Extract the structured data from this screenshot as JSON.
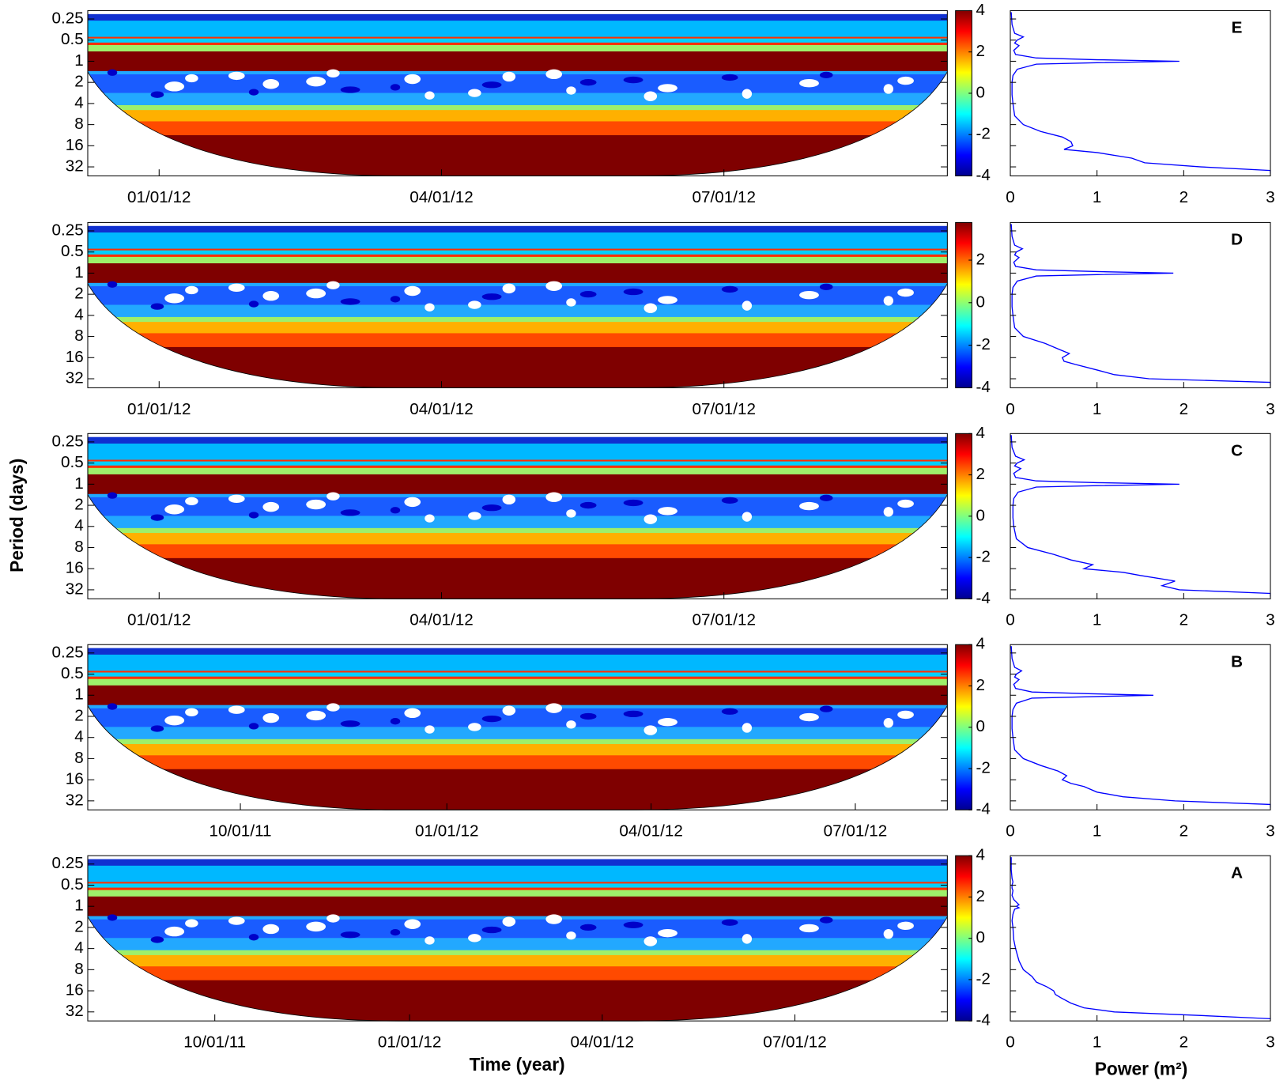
{
  "y_label": "Period (days)",
  "x_label": "Time (year)",
  "power_label": "Power (m²)",
  "chart_data": [
    {
      "type": "wavelet",
      "label": "E",
      "xlim": [
        "2011-12-09",
        "2012-09-11"
      ],
      "xticks": [
        {
          "value": "2012-01-01",
          "label": "01/01/12"
        },
        {
          "value": "2012-04-01",
          "label": "04/01/12"
        },
        {
          "value": "2012-07-01",
          "label": "07/01/12"
        }
      ],
      "ylim": [
        43,
        0.19
      ],
      "yticks": [
        0.25,
        0.5,
        1,
        2,
        4,
        8,
        16,
        32
      ],
      "log_y": true,
      "colorbar": {
        "lim": [
          -4,
          4
        ],
        "ticks": [
          -4,
          -2,
          0,
          2,
          4
        ]
      },
      "spectrum": {
        "color": "#0000ff",
        "xlim": [
          0,
          3
        ],
        "xticks": [
          0,
          1,
          2,
          3
        ],
        "period": [
          0.2,
          0.3,
          0.4,
          0.45,
          0.5,
          0.55,
          0.6,
          0.7,
          0.8,
          0.9,
          0.95,
          1,
          1.05,
          1.1,
          1.3,
          1.6,
          2,
          3,
          4,
          6,
          8,
          10,
          12,
          14,
          16,
          18,
          20,
          24,
          28,
          32,
          36,
          40
        ],
        "power": [
          0.01,
          0.02,
          0.05,
          0.15,
          0.08,
          0.05,
          0.1,
          0.04,
          0.06,
          0.3,
          1.0,
          1.95,
          1.0,
          0.3,
          0.08,
          0.03,
          0.02,
          0.02,
          0.03,
          0.05,
          0.15,
          0.35,
          0.6,
          0.7,
          0.72,
          0.62,
          1.0,
          1.4,
          1.55,
          2.2,
          3.0,
          3.0
        ]
      }
    },
    {
      "type": "wavelet",
      "label": "D",
      "xlim": [
        "2011-12-09",
        "2012-09-11"
      ],
      "xticks": [
        {
          "value": "2012-01-01",
          "label": "01/01/12"
        },
        {
          "value": "2012-04-01",
          "label": "04/01/12"
        },
        {
          "value": "2012-07-01",
          "label": "07/01/12"
        }
      ],
      "ylim": [
        43,
        0.19
      ],
      "yticks": [
        0.25,
        0.5,
        1,
        2,
        4,
        8,
        16,
        32
      ],
      "log_y": true,
      "colorbar": {
        "lim": [
          -4,
          3.77
        ],
        "ticks": [
          -4,
          -2,
          0,
          2
        ]
      },
      "spectrum": {
        "color": "#0000ff",
        "xlim": [
          0,
          3
        ],
        "xticks": [
          0,
          1,
          2,
          3
        ],
        "period": [
          0.2,
          0.3,
          0.4,
          0.45,
          0.5,
          0.55,
          0.6,
          0.7,
          0.8,
          0.9,
          0.95,
          1,
          1.05,
          1.1,
          1.3,
          1.6,
          2,
          3,
          4,
          6,
          8,
          10,
          12,
          14,
          16,
          18,
          20,
          24,
          28,
          32,
          36,
          40
        ],
        "power": [
          0.01,
          0.02,
          0.05,
          0.14,
          0.07,
          0.05,
          0.1,
          0.04,
          0.06,
          0.3,
          1.0,
          1.88,
          1.0,
          0.3,
          0.08,
          0.03,
          0.02,
          0.02,
          0.03,
          0.05,
          0.15,
          0.4,
          0.55,
          0.68,
          0.6,
          0.62,
          0.75,
          1.0,
          1.2,
          1.6,
          3.0,
          3.0
        ]
      }
    },
    {
      "type": "wavelet",
      "label": "C",
      "xlim": [
        "2011-12-09",
        "2012-09-11"
      ],
      "xticks": [
        {
          "value": "2012-01-01",
          "label": "01/01/12"
        },
        {
          "value": "2012-04-01",
          "label": "04/01/12"
        },
        {
          "value": "2012-07-01",
          "label": "07/01/12"
        }
      ],
      "ylim": [
        43,
        0.19
      ],
      "yticks": [
        0.25,
        0.5,
        1,
        2,
        4,
        8,
        16,
        32
      ],
      "log_y": true,
      "colorbar": {
        "lim": [
          -4,
          4
        ],
        "ticks": [
          -4,
          -2,
          0,
          2,
          4
        ]
      },
      "spectrum": {
        "color": "#0000ff",
        "xlim": [
          0,
          3
        ],
        "xticks": [
          0,
          1,
          2,
          3
        ],
        "period": [
          0.2,
          0.3,
          0.4,
          0.45,
          0.5,
          0.55,
          0.6,
          0.7,
          0.8,
          0.9,
          0.95,
          1,
          1.05,
          1.1,
          1.3,
          1.6,
          2,
          3,
          4,
          6,
          8,
          10,
          12,
          14,
          16,
          18,
          20,
          24,
          28,
          32,
          36,
          40
        ],
        "power": [
          0.01,
          0.02,
          0.06,
          0.16,
          0.08,
          0.05,
          0.12,
          0.04,
          0.06,
          0.3,
          1.0,
          1.95,
          1.0,
          0.3,
          0.09,
          0.04,
          0.03,
          0.03,
          0.04,
          0.07,
          0.2,
          0.5,
          0.7,
          0.95,
          0.85,
          1.3,
          1.5,
          1.9,
          1.75,
          1.95,
          3.0,
          3.0
        ]
      }
    },
    {
      "type": "wavelet",
      "label": "B",
      "xlim": [
        "2011-07-25",
        "2012-08-11"
      ],
      "xticks": [
        {
          "value": "2011-10-01",
          "label": "10/01/11"
        },
        {
          "value": "2012-01-01",
          "label": "01/01/12"
        },
        {
          "value": "2012-04-01",
          "label": "04/01/12"
        },
        {
          "value": "2012-07-01",
          "label": "07/01/12"
        }
      ],
      "ylim": [
        43,
        0.19
      ],
      "yticks": [
        0.25,
        0.5,
        1,
        2,
        4,
        8,
        16,
        32
      ],
      "log_y": true,
      "colorbar": {
        "lim": [
          -4,
          4
        ],
        "ticks": [
          -4,
          -2,
          0,
          2,
          4
        ]
      },
      "spectrum": {
        "color": "#0000ff",
        "xlim": [
          0,
          3
        ],
        "xticks": [
          0,
          1,
          2,
          3
        ],
        "period": [
          0.2,
          0.3,
          0.4,
          0.45,
          0.5,
          0.55,
          0.6,
          0.7,
          0.8,
          0.9,
          0.95,
          1,
          1.05,
          1.1,
          1.3,
          1.6,
          2,
          3,
          4,
          6,
          8,
          10,
          12,
          14,
          16,
          18,
          20,
          24,
          28,
          32,
          36,
          40
        ],
        "power": [
          0.01,
          0.02,
          0.05,
          0.13,
          0.07,
          0.05,
          0.1,
          0.04,
          0.06,
          0.25,
          0.9,
          1.65,
          0.9,
          0.25,
          0.07,
          0.03,
          0.02,
          0.02,
          0.03,
          0.05,
          0.15,
          0.35,
          0.55,
          0.65,
          0.6,
          0.7,
          0.85,
          1.0,
          1.3,
          1.9,
          3.0,
          3.0
        ]
      }
    },
    {
      "type": "wavelet",
      "label": "A",
      "xlim": [
        "2011-08-02",
        "2012-09-11"
      ],
      "xticks": [
        {
          "value": "2011-10-01",
          "label": "10/01/11"
        },
        {
          "value": "2012-01-01",
          "label": "01/01/12"
        },
        {
          "value": "2012-04-01",
          "label": "04/01/12"
        },
        {
          "value": "2012-07-01",
          "label": "07/01/12"
        }
      ],
      "ylim": [
        43,
        0.19
      ],
      "yticks": [
        0.25,
        0.5,
        1,
        2,
        4,
        8,
        16,
        32
      ],
      "log_y": true,
      "colorbar": {
        "lim": [
          -4,
          4
        ],
        "ticks": [
          -4,
          -2,
          0,
          2,
          4
        ]
      },
      "spectrum": {
        "color": "#0000ff",
        "xlim": [
          0,
          3
        ],
        "xticks": [
          0,
          1,
          2,
          3
        ],
        "period": [
          0.2,
          0.3,
          0.4,
          0.45,
          0.5,
          0.55,
          0.6,
          0.7,
          0.8,
          0.9,
          0.95,
          1,
          1.05,
          1.1,
          1.3,
          1.6,
          2,
          3,
          4,
          6,
          8,
          10,
          12,
          14,
          16,
          18,
          20,
          24,
          28,
          32,
          36,
          40
        ],
        "power": [
          0.01,
          0.01,
          0.02,
          0.03,
          0.02,
          0.02,
          0.03,
          0.02,
          0.04,
          0.08,
          0.1,
          0.07,
          0.1,
          0.05,
          0.03,
          0.02,
          0.03,
          0.04,
          0.06,
          0.1,
          0.15,
          0.25,
          0.3,
          0.42,
          0.5,
          0.52,
          0.58,
          0.7,
          0.85,
          1.2,
          2.2,
          3.0
        ]
      }
    }
  ]
}
